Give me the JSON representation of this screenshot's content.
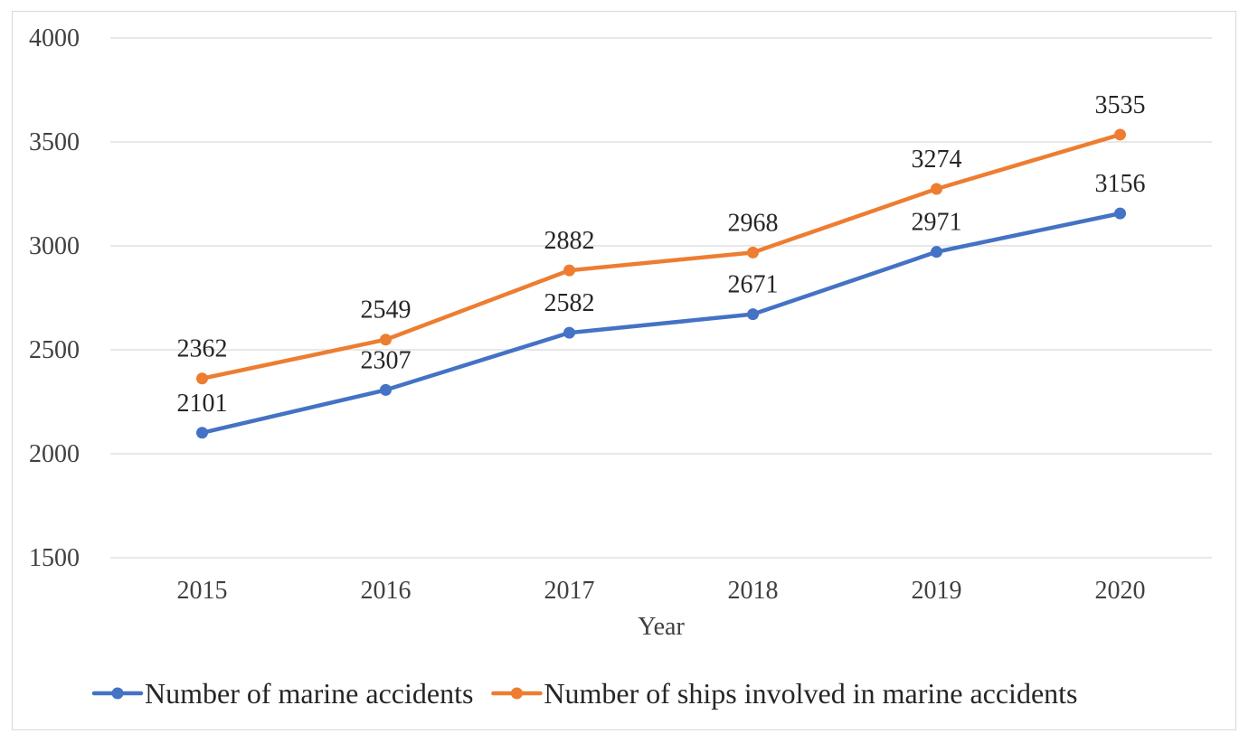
{
  "chart_data": {
    "type": "line",
    "title": "",
    "xlabel": "Year",
    "ylabel": "",
    "ylim": [
      1500,
      4000
    ],
    "yticks": [
      1500,
      2000,
      2500,
      3000,
      3500,
      4000
    ],
    "categories": [
      "2015",
      "2016",
      "2017",
      "2018",
      "2019",
      "2020"
    ],
    "grid": true,
    "legend_position": "bottom",
    "series": [
      {
        "name": "Number of marine accidents",
        "color": "#4472c4",
        "values": [
          2101,
          2307,
          2582,
          2671,
          2971,
          3156
        ]
      },
      {
        "name": "Number of ships involved in marine accidents",
        "color": "#ed7d31",
        "values": [
          2362,
          2549,
          2882,
          2968,
          3274,
          3535
        ]
      }
    ]
  }
}
